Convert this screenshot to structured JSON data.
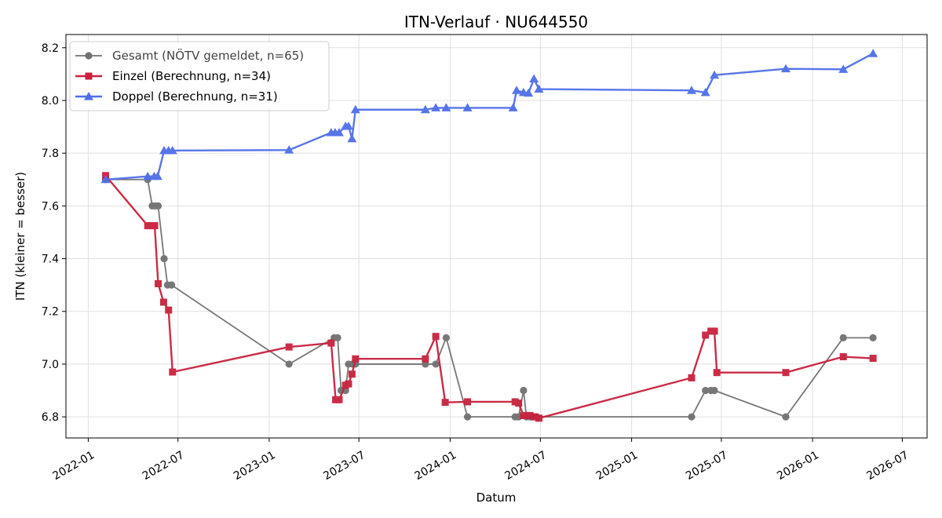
{
  "chart_data": {
    "type": "line",
    "title": "ITN-Verlauf · NU644550",
    "xlabel": "Datum",
    "ylabel": "ITN  (kleiner = besser)",
    "x_axis_type": "date",
    "xlim": [
      "2021-11-17",
      "2026-08-20"
    ],
    "ylim": [
      6.72,
      8.25
    ],
    "x_ticks": [
      "2022-01",
      "2022-07",
      "2023-01",
      "2023-07",
      "2024-01",
      "2024-07",
      "2025-01",
      "2025-07",
      "2026-01",
      "2026-07"
    ],
    "y_ticks": [
      "6.8",
      "7.0",
      "7.2",
      "7.4",
      "7.6",
      "7.8",
      "8.0",
      "8.2"
    ],
    "grid": true,
    "legend_position": "top-left",
    "series": [
      {
        "name": "Gesamt (NÖTV gemeldet, n=65)",
        "color": "#444444",
        "marker": "circle",
        "points": [
          [
            "2022-02-05",
            7.7
          ],
          [
            "2022-05-01",
            7.7
          ],
          [
            "2022-05-10",
            7.6
          ],
          [
            "2022-05-16",
            7.6
          ],
          [
            "2022-05-22",
            7.6
          ],
          [
            "2022-06-03",
            7.4
          ],
          [
            "2022-06-10",
            7.3
          ],
          [
            "2022-06-18",
            7.3
          ],
          [
            "2023-02-10",
            7.0
          ],
          [
            "2023-05-12",
            7.1
          ],
          [
            "2023-05-19",
            7.1
          ],
          [
            "2023-05-26",
            6.9
          ],
          [
            "2023-06-04",
            6.9
          ],
          [
            "2023-06-10",
            7.0
          ],
          [
            "2023-06-18",
            7.0
          ],
          [
            "2023-06-24",
            7.0
          ],
          [
            "2023-11-12",
            7.0
          ],
          [
            "2023-12-03",
            7.0
          ],
          [
            "2023-12-24",
            7.1
          ],
          [
            "2024-02-05",
            6.8
          ],
          [
            "2024-05-11",
            6.8
          ],
          [
            "2024-05-18",
            6.8
          ],
          [
            "2024-05-28",
            6.9
          ],
          [
            "2024-06-03",
            6.8
          ],
          [
            "2024-06-10",
            6.8
          ],
          [
            "2024-06-17",
            6.8
          ],
          [
            "2024-06-24",
            6.8
          ],
          [
            "2025-05-02",
            6.8
          ],
          [
            "2025-05-30",
            6.9
          ],
          [
            "2025-06-10",
            6.9
          ],
          [
            "2025-06-17",
            6.9
          ],
          [
            "2025-11-08",
            6.8
          ],
          [
            "2026-03-04",
            7.1
          ],
          [
            "2026-05-03",
            7.1
          ]
        ]
      },
      {
        "name": "Einzel (Berechnung, n=34)",
        "color": "#c8213d",
        "marker": "square",
        "points": [
          [
            "2022-02-05",
            7.715
          ],
          [
            "2022-05-01",
            7.525
          ],
          [
            "2022-05-08",
            7.525
          ],
          [
            "2022-05-15",
            7.525
          ],
          [
            "2022-05-22",
            7.305
          ],
          [
            "2022-06-02",
            7.235
          ],
          [
            "2022-06-12",
            7.205
          ],
          [
            "2022-06-20",
            6.97
          ],
          [
            "2023-02-10",
            7.065
          ],
          [
            "2023-05-06",
            7.08
          ],
          [
            "2023-05-15",
            6.865
          ],
          [
            "2023-05-22",
            6.865
          ],
          [
            "2023-06-04",
            6.92
          ],
          [
            "2023-06-10",
            6.925
          ],
          [
            "2023-06-17",
            6.962
          ],
          [
            "2023-06-24",
            7.02
          ],
          [
            "2023-11-12",
            7.02
          ],
          [
            "2023-12-03",
            7.105
          ],
          [
            "2023-12-22",
            6.855
          ],
          [
            "2024-02-05",
            6.857
          ],
          [
            "2024-05-11",
            6.857
          ],
          [
            "2024-05-18",
            6.852
          ],
          [
            "2024-05-28",
            6.805
          ],
          [
            "2024-06-03",
            6.805
          ],
          [
            "2024-06-10",
            6.805
          ],
          [
            "2024-06-19",
            6.8
          ],
          [
            "2024-06-28",
            6.795
          ],
          [
            "2025-05-02",
            6.948
          ],
          [
            "2025-05-30",
            7.11
          ],
          [
            "2025-06-10",
            7.125
          ],
          [
            "2025-06-17",
            7.125
          ],
          [
            "2025-06-22",
            6.968
          ],
          [
            "2025-11-08",
            6.968
          ],
          [
            "2026-03-04",
            7.028
          ],
          [
            "2026-05-03",
            7.022
          ]
        ]
      },
      {
        "name": "Doppel (Berechnung, n=31)",
        "color": "#4f6ee8",
        "marker": "triangle",
        "points": [
          [
            "2022-02-05",
            7.7
          ],
          [
            "2022-05-01",
            7.712
          ],
          [
            "2022-05-14",
            7.712
          ],
          [
            "2022-05-21",
            7.712
          ],
          [
            "2022-06-03",
            7.81
          ],
          [
            "2022-06-12",
            7.81
          ],
          [
            "2022-06-20",
            7.81
          ],
          [
            "2023-02-10",
            7.812
          ],
          [
            "2023-05-06",
            7.878
          ],
          [
            "2023-05-14",
            7.878
          ],
          [
            "2023-05-22",
            7.878
          ],
          [
            "2023-06-04",
            7.902
          ],
          [
            "2023-06-10",
            7.902
          ],
          [
            "2023-06-17",
            7.855
          ],
          [
            "2023-06-24",
            7.965
          ],
          [
            "2023-11-12",
            7.965
          ],
          [
            "2023-12-03",
            7.972
          ],
          [
            "2023-12-24",
            7.972
          ],
          [
            "2024-02-05",
            7.972
          ],
          [
            "2024-05-07",
            7.972
          ],
          [
            "2024-05-14",
            8.038
          ],
          [
            "2024-05-28",
            8.03
          ],
          [
            "2024-06-07",
            8.028
          ],
          [
            "2024-06-18",
            8.082
          ],
          [
            "2024-06-28",
            8.043
          ],
          [
            "2025-05-02",
            8.038
          ],
          [
            "2025-05-30",
            8.03
          ],
          [
            "2025-06-17",
            8.096
          ],
          [
            "2025-11-08",
            8.12
          ],
          [
            "2026-03-04",
            8.118
          ],
          [
            "2026-05-03",
            8.178
          ]
        ]
      }
    ]
  }
}
